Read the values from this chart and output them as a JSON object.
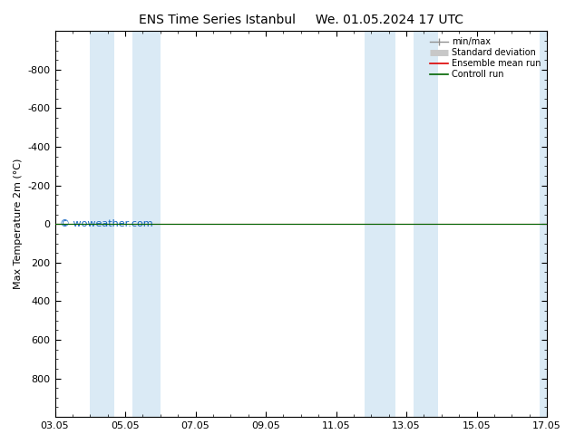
{
  "title_left": "ENS Time Series Istanbul",
  "title_right": "We. 01.05.2024 17 UTC",
  "ylabel": "Max Temperature 2m (°C)",
  "ylim": [
    -1000,
    1000
  ],
  "yticks": [
    -800,
    -600,
    -400,
    -200,
    0,
    200,
    400,
    600,
    800
  ],
  "xtick_labels": [
    "03.05",
    "05.05",
    "07.05",
    "09.05",
    "11.05",
    "13.05",
    "15.05",
    "17.05"
  ],
  "xtick_positions": [
    0,
    2,
    4,
    6,
    8,
    10,
    12,
    14
  ],
  "blue_bands": [
    [
      1.0,
      1.7
    ],
    [
      2.2,
      3.0
    ],
    [
      8.8,
      9.7
    ],
    [
      10.2,
      10.9
    ],
    [
      13.8,
      14.0
    ]
  ],
  "ensemble_mean_y": 0,
  "control_run_y": 0,
  "watermark": "© woweather.com",
  "watermark_color": "#1565C0",
  "background_color": "#ffffff",
  "plot_bg_color": "#ffffff",
  "blue_band_color": "#daeaf5",
  "ensemble_mean_color": "#dd0000",
  "control_run_color": "#006400",
  "minmax_color": "#909090",
  "std_dev_color": "#c8c8c8",
  "legend_entries": [
    "min/max",
    "Standard deviation",
    "Ensemble mean run",
    "Controll run"
  ],
  "title_fontsize": 10,
  "axis_fontsize": 8,
  "tick_fontsize": 8
}
